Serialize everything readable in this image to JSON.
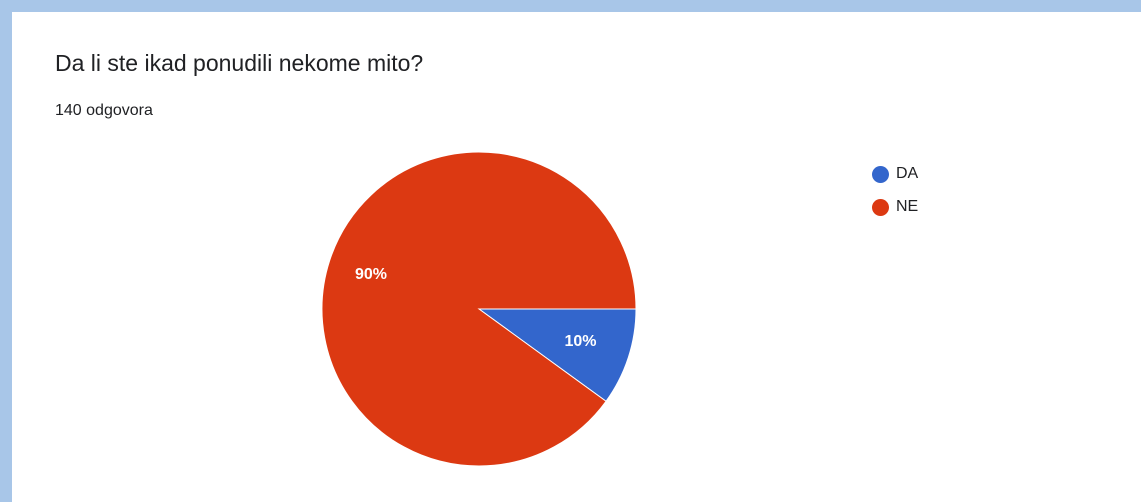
{
  "chart_data": {
    "type": "pie",
    "title": "Da li ste ikad ponudili nekome mito?",
    "subtitle": "140 odgovora",
    "legend_position": "right",
    "categories": [
      "DA",
      "NE"
    ],
    "values": [
      10,
      90
    ],
    "value_labels": [
      "10%",
      "90%"
    ],
    "colors": [
      "#3366cc",
      "#dc3912"
    ]
  }
}
